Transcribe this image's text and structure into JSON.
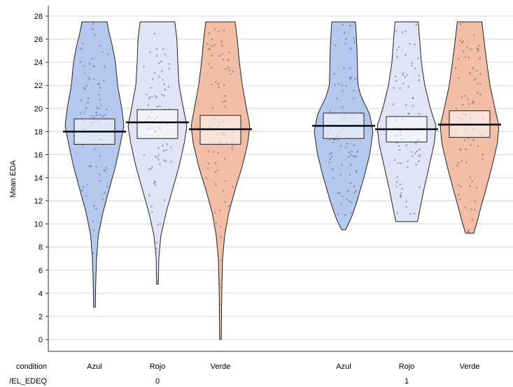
{
  "chart_data": {
    "type": "violin",
    "ylabel": "Mean EDA",
    "ylim": [
      -1,
      28.8
    ],
    "yticks": [
      0,
      2,
      4,
      6,
      8,
      10,
      12,
      14,
      16,
      18,
      20,
      22,
      24,
      26,
      28
    ],
    "grid": true,
    "factor_labels": [
      "condition",
      "/EL_EDEQ"
    ],
    "groups": [
      {
        "label": "0",
        "violins": [
          {
            "condition": "Azul",
            "color": "#b5c9ef",
            "mean": 18.0,
            "ci": [
              16.9,
              19.1
            ],
            "min": 2.8,
            "max": 27.5,
            "density": [
              [
                2.8,
                0.02
              ],
              [
                5,
                0.03
              ],
              [
                7,
                0.05
              ],
              [
                9,
                0.09
              ],
              [
                11,
                0.2
              ],
              [
                13,
                0.35
              ],
              [
                15,
                0.5
              ],
              [
                17,
                0.62
              ],
              [
                18.5,
                0.7
              ],
              [
                20,
                0.65
              ],
              [
                22,
                0.55
              ],
              [
                24,
                0.5
              ],
              [
                25.5,
                0.42
              ],
              [
                26.5,
                0.35
              ],
              [
                27.5,
                0.3
              ]
            ]
          },
          {
            "condition": "Rojo",
            "color": "#e3e3f7",
            "mean": 18.8,
            "ci": [
              17.4,
              19.9
            ],
            "min": 4.8,
            "max": 27.5,
            "density": [
              [
                4.8,
                0.02
              ],
              [
                7,
                0.03
              ],
              [
                9,
                0.08
              ],
              [
                11,
                0.2
              ],
              [
                13,
                0.35
              ],
              [
                15,
                0.5
              ],
              [
                17,
                0.62
              ],
              [
                18.5,
                0.68
              ],
              [
                20,
                0.6
              ],
              [
                22,
                0.5
              ],
              [
                24,
                0.47
              ],
              [
                26,
                0.45
              ],
              [
                27.5,
                0.4
              ]
            ]
          },
          {
            "condition": "Verde",
            "color": "#f2bea6",
            "mean": 18.2,
            "ci": [
              16.9,
              19.4
            ],
            "min": 0.0,
            "max": 27.5,
            "density": [
              [
                0,
                0.02
              ],
              [
                4,
                0.03
              ],
              [
                7,
                0.05
              ],
              [
                9,
                0.1
              ],
              [
                11,
                0.2
              ],
              [
                13,
                0.35
              ],
              [
                15,
                0.52
              ],
              [
                17,
                0.65
              ],
              [
                18.5,
                0.7
              ],
              [
                20,
                0.62
              ],
              [
                22,
                0.52
              ],
              [
                24,
                0.45
              ],
              [
                26,
                0.4
              ],
              [
                27.5,
                0.35
              ]
            ]
          }
        ]
      },
      {
        "label": "1",
        "violins": [
          {
            "condition": "Azul",
            "color": "#b5c9ef",
            "mean": 18.5,
            "ci": [
              17.4,
              19.6
            ],
            "min": 9.5,
            "max": 27.5,
            "density": [
              [
                9.5,
                0.05
              ],
              [
                10.5,
                0.18
              ],
              [
                12,
                0.32
              ],
              [
                14,
                0.48
              ],
              [
                16,
                0.62
              ],
              [
                18,
                0.7
              ],
              [
                19.5,
                0.62
              ],
              [
                21,
                0.42
              ],
              [
                22,
                0.34
              ],
              [
                23.5,
                0.33
              ],
              [
                25,
                0.32
              ],
              [
                26.5,
                0.3
              ],
              [
                27.5,
                0.28
              ]
            ]
          },
          {
            "condition": "Rojo",
            "color": "#e3e3f7",
            "mean": 18.2,
            "ci": [
              17.1,
              19.3
            ],
            "min": 10.2,
            "max": 27.5,
            "density": [
              [
                10.2,
                0.25
              ],
              [
                11.5,
                0.32
              ],
              [
                13,
                0.4
              ],
              [
                15,
                0.52
              ],
              [
                17,
                0.64
              ],
              [
                18.5,
                0.68
              ],
              [
                20,
                0.55
              ],
              [
                22,
                0.42
              ],
              [
                24,
                0.34
              ],
              [
                26,
                0.3
              ],
              [
                27.5,
                0.27
              ]
            ]
          },
          {
            "condition": "Verde",
            "color": "#f2bea6",
            "mean": 18.6,
            "ci": [
              17.5,
              19.8
            ],
            "min": 9.2,
            "max": 27.5,
            "density": [
              [
                9.2,
                0.1
              ],
              [
                10,
                0.17
              ],
              [
                11.5,
                0.28
              ],
              [
                13,
                0.4
              ],
              [
                15,
                0.55
              ],
              [
                17,
                0.68
              ],
              [
                18.5,
                0.72
              ],
              [
                20,
                0.62
              ],
              [
                22,
                0.5
              ],
              [
                24,
                0.42
              ],
              [
                26,
                0.35
              ],
              [
                27.5,
                0.3
              ]
            ]
          }
        ]
      }
    ]
  }
}
